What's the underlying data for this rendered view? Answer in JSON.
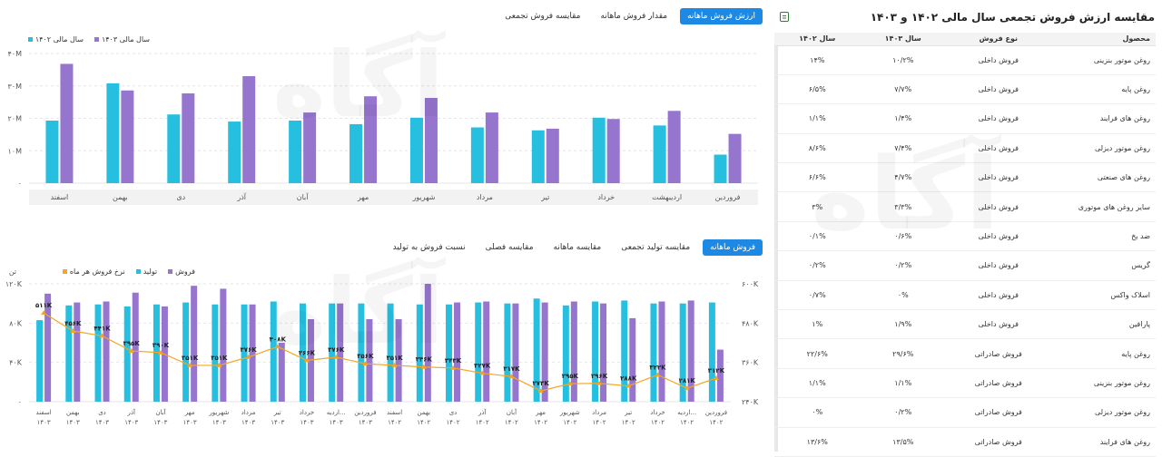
{
  "top": {
    "tabs": [
      {
        "label": "ارزش فروش ماهانه",
        "active": true
      },
      {
        "label": "مقدار فروش ماهانه",
        "active": false
      },
      {
        "label": "مقایسه فروش تجمعی",
        "active": false
      }
    ],
    "legend": [
      {
        "label": "سال مالی ۱۴۰۳",
        "color": "#9575cd"
      },
      {
        "label": "سال مالی ۱۴۰۲",
        "color": "#26bfe0"
      }
    ]
  },
  "bottom": {
    "tabs": [
      {
        "label": "فروش ماهانه",
        "active": true
      },
      {
        "label": "مقایسه تولید تجمعی",
        "active": false
      },
      {
        "label": "مقایسه ماهانه",
        "active": false
      },
      {
        "label": "مقایسه فصلی",
        "active": false
      },
      {
        "label": "نسبت فروش به تولید",
        "active": false
      }
    ],
    "legend": [
      {
        "label": "فروش",
        "color": "#9575cd"
      },
      {
        "label": "تولید",
        "color": "#26bfe0"
      },
      {
        "label": "نرخ فروش هر ماه",
        "color": "#f5a623"
      }
    ],
    "unit_label": "تن"
  },
  "chart_data": [
    {
      "type": "bar",
      "categories": [
        "فروردین",
        "اردیبهشت",
        "خرداد",
        "تیر",
        "مرداد",
        "شهریور",
        "مهر",
        "آبان",
        "آذر",
        "دی",
        "بهمن",
        "اسفند"
      ],
      "series": [
        {
          "name": "سال مالی ۱۴۰۲",
          "color": "#26bfe0",
          "values": [
            8.8,
            17.8,
            20.2,
            16.3,
            17.2,
            20.2,
            18.2,
            19.3,
            19.0,
            21.2,
            30.8,
            19.3
          ]
        },
        {
          "name": "سال مالی ۱۴۰۳",
          "color": "#9575cd",
          "values": [
            15.2,
            22.3,
            19.8,
            16.8,
            21.8,
            26.3,
            26.8,
            21.8,
            33.0,
            27.7,
            28.6,
            36.8
          ]
        }
      ],
      "ylim": [
        0,
        40000000
      ],
      "ytick_labels": [
        "۰",
        "۱۰M",
        "۲۰M",
        "۳۰M",
        "۴۰M"
      ],
      "grid": true
    },
    {
      "type": "bar",
      "categories": [
        "فروردین ۱۴۰۲",
        "اردیبهشت ۱۴۰۲",
        "خرداد ۱۴۰۲",
        "تیر ۱۴۰۲",
        "مرداد ۱۴۰۲",
        "شهریور ۱۴۰۲",
        "مهر ۱۴۰۲",
        "آبان ۱۴۰۲",
        "آذر ۱۴۰۲",
        "دی ۱۴۰۲",
        "بهمن ۱۴۰۲",
        "اسفند ۱۴۰۲",
        "فروردین ۱۴۰۳",
        "اردیبهشت ۱۴۰۳",
        "خرداد ۱۴۰۳",
        "تیر ۱۴۰۳",
        "مرداد ۱۴۰۳",
        "شهریور ۱۴۰۳",
        "مهر ۱۴۰۳",
        "آبان ۱۴۰۳",
        "آذر ۱۴۰۳",
        "دی ۱۴۰۳",
        "بهمن ۱۴۰۳",
        "اسفند ۱۴۰۳"
      ],
      "x_labels": [
        "فروردین",
        "اردیه...",
        "خرداد",
        "تیر",
        "مرداد",
        "شهریور",
        "مهر",
        "آبان",
        "آذر",
        "دی",
        "بهمن",
        "اسفند",
        "فروردین",
        "اردیه...",
        "خرداد",
        "تیر",
        "مرداد",
        "شهریور",
        "مهر",
        "آبان",
        "آذر",
        "دی",
        "بهمن",
        "اسفند"
      ],
      "x_years": [
        "۱۴۰۲",
        "۱۴۰۲",
        "۱۴۰۲",
        "۱۴۰۲",
        "۱۴۰۲",
        "۱۴۰۲",
        "۱۴۰۲",
        "۱۴۰۲",
        "۱۴۰۲",
        "۱۴۰۲",
        "۱۴۰۲",
        "۱۴۰۲",
        "۱۴۰۳",
        "۱۴۰۳",
        "۱۴۰۳",
        "۱۴۰۳",
        "۱۴۰۳",
        "۱۴۰۳",
        "۱۴۰۳",
        "۱۴۰۳",
        "۱۴۰۳",
        "۱۴۰۳",
        "۱۴۰۳",
        "۱۴۰۳"
      ],
      "series": [
        {
          "name": "تولید",
          "color": "#26bfe0",
          "values": [
            101000,
            100000,
            100000,
            103000,
            102000,
            98000,
            105000,
            100000,
            101000,
            99000,
            99000,
            100000,
            100000,
            100000,
            100000,
            102000,
            99000,
            99000,
            101000,
            99000,
            97000,
            99000,
            98000,
            83000
          ]
        },
        {
          "name": "فروش",
          "color": "#9575cd",
          "values": [
            53000,
            103000,
            102000,
            85000,
            100000,
            102000,
            101000,
            100000,
            102000,
            101000,
            120000,
            84000,
            84000,
            100000,
            84000,
            60000,
            99000,
            115000,
            118000,
            97000,
            111000,
            102000,
            101000,
            110000
          ]
        }
      ],
      "line": {
        "name": "نرخ فروش هر ماه",
        "color": "#f5a623",
        "values": [
          312000,
          281000,
          322000,
          288000,
          296000,
          295000,
          273000,
          317000,
          327000,
          343000,
          346000,
          351000,
          356000,
          376000,
          366000,
          408000,
          376000,
          351000,
          351000,
          390000,
          395000,
          441000,
          456000,
          511000
        ],
        "labels": [
          "۳۱۲K",
          "۲۸۱K",
          "۳۲۲K",
          "۲۸۸K",
          "۲۹۶K",
          "۲۹۵K",
          "۲۷۳K",
          "۳۱۷K",
          "۳۲۷K",
          "۳۴۳K",
          "۳۴۶K",
          "۳۵۱K",
          "۳۵۶K",
          "۳۷۶K",
          "۳۶۶K",
          "۴۰۸K",
          "۳۷۶K",
          "۳۵۱K",
          "۳۵۱K",
          "۳۹۰K",
          "۳۹۵K",
          "۴۴۱K",
          "۴۵۶K",
          "۵۱۱K"
        ]
      },
      "ylim_left": [
        0,
        120000
      ],
      "ytick_labels_left": [
        "۰",
        "۴۰K",
        "۸۰K",
        "۱۲۰K"
      ],
      "ylim_right": [
        240000,
        600000
      ],
      "ytick_labels_right": [
        "۲۴۰K",
        "۳۶۰K",
        "۴۸۰K",
        "۶۰۰K"
      ],
      "ylabel_left": "تن",
      "grid": true
    }
  ],
  "panel": {
    "title": "مقایسه ارزش فروش تجمعی سال مالی ۱۴۰۲ و ۱۴۰۳",
    "headers": [
      "محصول",
      "نوع فروش",
      "سال ۱۴۰۳",
      "سال ۱۴۰۲"
    ],
    "rows": [
      [
        "روغن موتور بنزینی",
        "فروش داخلی",
        "۱۰/۲%",
        "۱۴%"
      ],
      [
        "روغن پایه",
        "فروش داخلی",
        "۷/۷%",
        "۶/۵%"
      ],
      [
        "روغن های فرایند",
        "فروش داخلی",
        "۱/۴%",
        "۱/۱%"
      ],
      [
        "روغن موتور دیزلی",
        "فروش داخلی",
        "۷/۴%",
        "۸/۶%"
      ],
      [
        "روغن های صنعتی",
        "فروش داخلی",
        "۴/۷%",
        "۶/۶%"
      ],
      [
        "سایر روغن های موتوری",
        "فروش داخلی",
        "۳/۳%",
        "۳%"
      ],
      [
        "ضد یخ",
        "فروش داخلی",
        "۰/۶%",
        "۰/۱%"
      ],
      [
        "گریس",
        "فروش داخلی",
        "۰/۲%",
        "۰/۲%"
      ],
      [
        "اسلاک واکس",
        "فروش داخلی",
        "۰%",
        "۰/۷%"
      ],
      [
        "پارافین",
        "فروش داخلی",
        "۱/۹%",
        "۱%"
      ],
      [
        "روغن پایه",
        "فروش صادراتی",
        "۲۹/۶%",
        "۲۲/۶%"
      ],
      [
        "روغن موتور بنزینی",
        "فروش صادراتی",
        "۱/۱%",
        "۱/۱%"
      ],
      [
        "روغن موتور دیزلی",
        "فروش صادراتی",
        "۰/۲%",
        "۰%"
      ],
      [
        "روغن های فرایند",
        "فروش صادراتی",
        "۱۳/۵%",
        "۱۳/۶%"
      ]
    ]
  },
  "watermark": {
    "text": "آگاه",
    "subtext": "کارگزار بورس اوراق بهادار، کالا و انرژی"
  }
}
